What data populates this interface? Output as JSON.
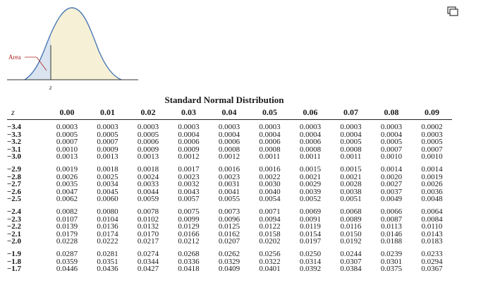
{
  "diagram": {
    "area_label": "Area",
    "z_label": "z"
  },
  "table": {
    "title": "Standard Normal Distribution",
    "z_header": "z",
    "col_headers": [
      "0.00",
      "0.01",
      "0.02",
      "0.03",
      "0.04",
      "0.05",
      "0.06",
      "0.07",
      "0.08",
      "0.09"
    ],
    "groups": [
      [
        {
          "z": "−3.4",
          "vals": [
            "0.0003",
            "0.0003",
            "0.0003",
            "0.0003",
            "0.0003",
            "0.0003",
            "0.0003",
            "0.0003",
            "0.0003",
            "0.0002"
          ]
        },
        {
          "z": "−3.3",
          "vals": [
            "0.0005",
            "0.0005",
            "0.0005",
            "0.0004",
            "0.0004",
            "0.0004",
            "0.0004",
            "0.0004",
            "0.0004",
            "0.0003"
          ]
        },
        {
          "z": "−3.2",
          "vals": [
            "0.0007",
            "0.0007",
            "0.0006",
            "0.0006",
            "0.0006",
            "0.0006",
            "0.0006",
            "0.0005",
            "0.0005",
            "0.0005"
          ]
        },
        {
          "z": "−3.1",
          "vals": [
            "0.0010",
            "0.0009",
            "0.0009",
            "0.0009",
            "0.0008",
            "0.0008",
            "0.0008",
            "0.0008",
            "0.0007",
            "0.0007"
          ]
        },
        {
          "z": "−3.0",
          "vals": [
            "0.0013",
            "0.0013",
            "0.0013",
            "0.0012",
            "0.0012",
            "0.0011",
            "0.0011",
            "0.0011",
            "0.0010",
            "0.0010"
          ]
        }
      ],
      [
        {
          "z": "−2.9",
          "vals": [
            "0.0019",
            "0.0018",
            "0.0018",
            "0.0017",
            "0.0016",
            "0.0016",
            "0.0015",
            "0.0015",
            "0.0014",
            "0.0014"
          ]
        },
        {
          "z": "−2.8",
          "vals": [
            "0.0026",
            "0.0025",
            "0.0024",
            "0.0023",
            "0.0023",
            "0.0022",
            "0.0021",
            "0.0021",
            "0.0020",
            "0.0019"
          ]
        },
        {
          "z": "−2.7",
          "vals": [
            "0.0035",
            "0.0034",
            "0.0033",
            "0.0032",
            "0.0031",
            "0.0030",
            "0.0029",
            "0.0028",
            "0.0027",
            "0.0026"
          ]
        },
        {
          "z": "−2.6",
          "vals": [
            "0.0047",
            "0.0045",
            "0.0044",
            "0.0043",
            "0.0041",
            "0.0040",
            "0.0039",
            "0.0038",
            "0.0037",
            "0.0036"
          ]
        },
        {
          "z": "−2.5",
          "vals": [
            "0.0062",
            "0.0060",
            "0.0059",
            "0.0057",
            "0.0055",
            "0.0054",
            "0.0052",
            "0.0051",
            "0.0049",
            "0.0048"
          ]
        }
      ],
      [
        {
          "z": "−2.4",
          "vals": [
            "0.0082",
            "0.0080",
            "0.0078",
            "0.0075",
            "0.0073",
            "0.0071",
            "0.0069",
            "0.0068",
            "0.0066",
            "0.0064"
          ]
        },
        {
          "z": "−2.3",
          "vals": [
            "0.0107",
            "0.0104",
            "0.0102",
            "0.0099",
            "0.0096",
            "0.0094",
            "0.0091",
            "0.0089",
            "0.0087",
            "0.0084"
          ]
        },
        {
          "z": "−2.2",
          "vals": [
            "0.0139",
            "0.0136",
            "0.0132",
            "0.0129",
            "0.0125",
            "0.0122",
            "0.0119",
            "0.0116",
            "0.0113",
            "0.0110"
          ]
        },
        {
          "z": "−2.1",
          "vals": [
            "0.0179",
            "0.0174",
            "0.0170",
            "0.0166",
            "0.0162",
            "0.0158",
            "0.0154",
            "0.0150",
            "0.0146",
            "0.0143"
          ]
        },
        {
          "z": "−2.0",
          "vals": [
            "0.0228",
            "0.0222",
            "0.0217",
            "0.0212",
            "0.0207",
            "0.0202",
            "0.0197",
            "0.0192",
            "0.0188",
            "0.0183"
          ]
        }
      ],
      [
        {
          "z": "−1.9",
          "vals": [
            "0.0287",
            "0.0281",
            "0.0274",
            "0.0268",
            "0.0262",
            "0.0256",
            "0.0250",
            "0.0244",
            "0.0239",
            "0.0233"
          ]
        },
        {
          "z": "−1.8",
          "vals": [
            "0.0359",
            "0.0351",
            "0.0344",
            "0.0336",
            "0.0329",
            "0.0322",
            "0.0314",
            "0.0307",
            "0.0301",
            "0.0294"
          ]
        },
        {
          "z": "−1.7",
          "vals": [
            "0.0446",
            "0.0436",
            "0.0427",
            "0.0418",
            "0.0409",
            "0.0401",
            "0.0392",
            "0.0384",
            "0.0375",
            "0.0367"
          ]
        }
      ]
    ]
  }
}
